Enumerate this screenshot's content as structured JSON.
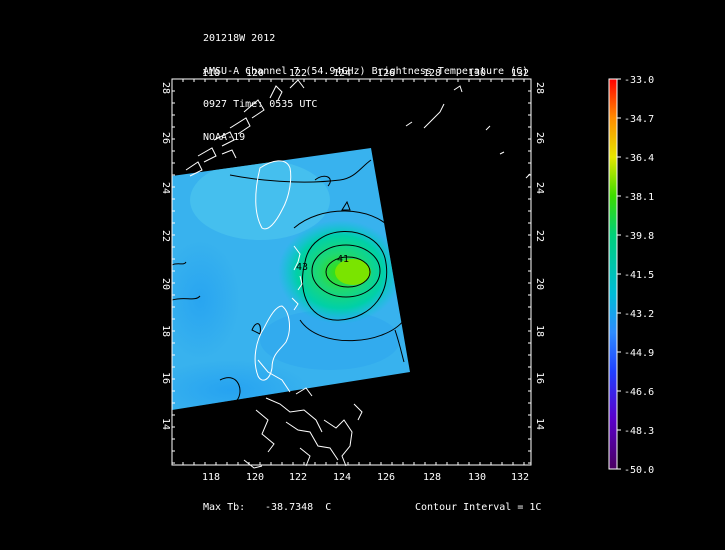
{
  "header": {
    "line1": "201218W 2012",
    "line2": "AMSU-A Channel 7 (54.94GHz) Brightness Temperature (C)",
    "line3": "0927 Time: 0535 UTC",
    "line4": "NOAA-19"
  },
  "map": {
    "lon_ticks": [
      "118",
      "120",
      "122",
      "124",
      "126",
      "128",
      "130",
      "132"
    ],
    "lat_ticks": [
      "14",
      "16",
      "18",
      "20",
      "22",
      "24",
      "26",
      "28"
    ],
    "contour_labels": [
      "41",
      "43"
    ]
  },
  "colorbar": {
    "labels": [
      "-33.0",
      "-34.7",
      "-36.4",
      "-38.1",
      "-39.8",
      "-41.5",
      "-43.2",
      "-44.9",
      "-46.6",
      "-48.3",
      "-50.0"
    ],
    "colors": [
      "#ff0000",
      "#ff8c00",
      "#e6e600",
      "#3cdc00",
      "#00d07a",
      "#00bcd8",
      "#2e8cff",
      "#2040ff",
      "#5a00cc",
      "#4a0060"
    ]
  },
  "footer": {
    "max_tb_label": "Max Tb:",
    "max_tb_value": "-38.7348  C",
    "contour_interval": "Contour Interval = 1C"
  },
  "chart_data": {
    "type": "heatmap",
    "lon_range": [
      116.5,
      132.5
    ],
    "lat_range": [
      12.5,
      28.5
    ],
    "value_range": [
      -50.0,
      -33.0
    ],
    "max_tb": -38.7348,
    "max_location_approx": {
      "lon": 124.6,
      "lat": 20.4
    }
  }
}
